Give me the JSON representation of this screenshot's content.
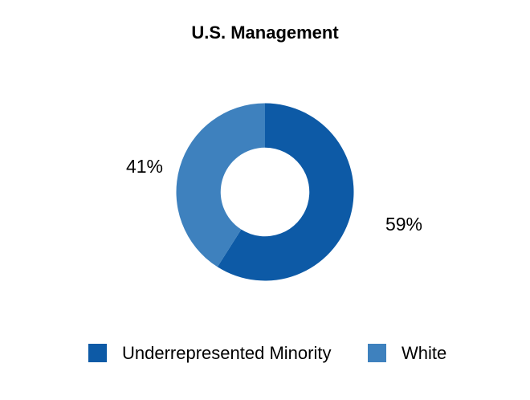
{
  "chart_data": {
    "type": "pie",
    "subtype": "donut",
    "title": "U.S. Management",
    "start_angle_deg": 0,
    "direction": "clockwise",
    "inner_radius_ratio": 0.5,
    "legend_position": "bottom",
    "slices": [
      {
        "label": "Underrepresented Minority",
        "value": 59,
        "display": "59%",
        "color": "#0D5AA6"
      },
      {
        "label": "White",
        "value": 41,
        "display": "41%",
        "color": "#3E81BE"
      }
    ]
  }
}
